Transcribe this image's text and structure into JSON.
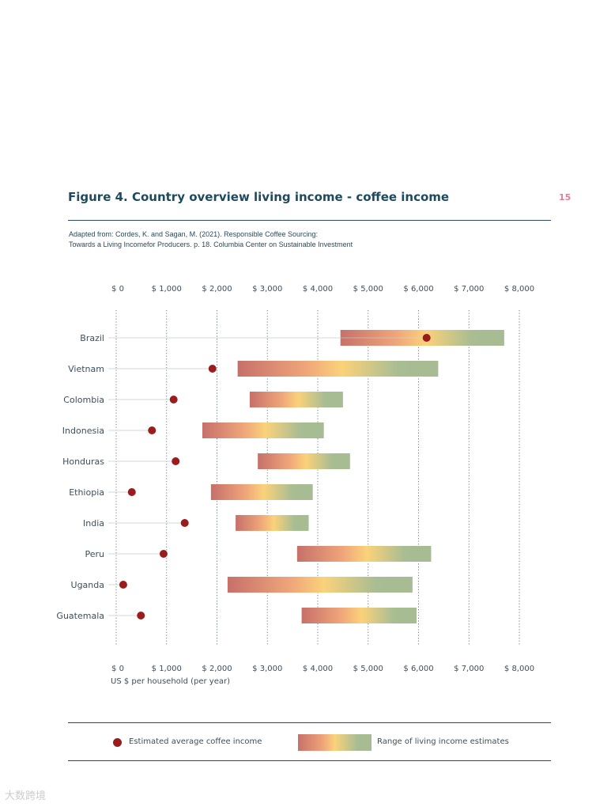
{
  "page_number": "15",
  "title": "Figure 4. Country overview living income - coffee income",
  "source": [
    "Adapted from: Cordes, K. and Sagan, M. (2021). Responsible Coffee Sourcing:",
    "Towards a Living Incomefor Producers. p. 18. Columbia Center on Sustainable Investment"
  ],
  "watermark": "大数跨境",
  "colors": {
    "dot": "#9b1c1c",
    "grad_low": "#c7706a",
    "grad_mid": "#fad27a",
    "grad_high": "#a7bb94",
    "text": "#1d4a5c"
  },
  "chart_data": {
    "type": "range-dot",
    "title": "Figure 4. Country overview living income - coffee income",
    "xlabel": "US $ per household (per year)",
    "xlim": [
      0,
      8000
    ],
    "xticks": [
      0,
      1000,
      2000,
      3000,
      4000,
      5000,
      6000,
      7000,
      8000
    ],
    "xtick_labels": [
      "$ 0",
      "$ 1,000",
      "$ 2,000",
      "$ 3,000",
      "$ 4,000",
      "$ 5,000",
      "$ 6,000",
      "$ 7,000",
      "$ 8,000"
    ],
    "grid": "vertical dotted",
    "categories": [
      "Brazil",
      "Vietnam",
      "Colombia",
      "Indonesia",
      "Honduras",
      "Ethiopia",
      "India",
      "Peru",
      "Uganda",
      "Guatemala"
    ],
    "series": [
      {
        "name": "Estimated average coffee income",
        "type": "dot",
        "values": [
          6160,
          1910,
          1140,
          710,
          1180,
          310,
          1360,
          940,
          140,
          490
        ]
      },
      {
        "name": "Range of living income estimates",
        "type": "range",
        "low": [
          4450,
          2410,
          2650,
          1710,
          2810,
          1880,
          2370,
          3590,
          2210,
          3680
        ],
        "high": [
          7700,
          6390,
          4500,
          4120,
          4640,
          3900,
          3820,
          6250,
          5880,
          5960
        ]
      }
    ],
    "legend": {
      "placement": "bottom",
      "dot_label": "Estimated average coffee income",
      "range_label": "Range of living income estimates"
    }
  }
}
